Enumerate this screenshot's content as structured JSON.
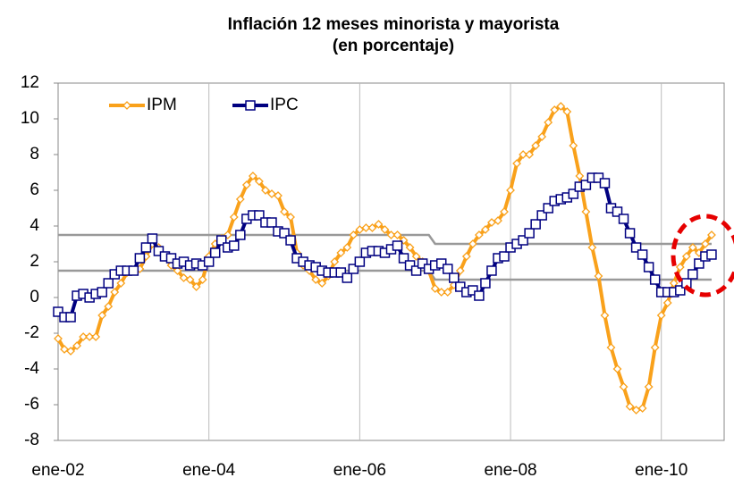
{
  "chart_data": {
    "type": "line",
    "title": "Inflación 12 meses minorista y mayorista (en porcentaje)",
    "categories": [
      "ene-02",
      null,
      null,
      null,
      null,
      null,
      null,
      null,
      null,
      null,
      null,
      null,
      null,
      null,
      null,
      null,
      null,
      null,
      null,
      null,
      null,
      null,
      null,
      null,
      "ene-04",
      null,
      null,
      null,
      null,
      null,
      null,
      null,
      null,
      null,
      null,
      null,
      null,
      null,
      null,
      null,
      null,
      null,
      null,
      null,
      null,
      null,
      null,
      null,
      "ene-06",
      null,
      null,
      null,
      null,
      null,
      null,
      null,
      null,
      null,
      null,
      null,
      null,
      null,
      null,
      null,
      null,
      null,
      null,
      null,
      null,
      null,
      null,
      null,
      "ene-08",
      null,
      null,
      null,
      null,
      null,
      null,
      null,
      null,
      null,
      null,
      null,
      null,
      null,
      null,
      null,
      null,
      null,
      null,
      null,
      null,
      null,
      null,
      null,
      "ene-10",
      null,
      null,
      null,
      null,
      null,
      null,
      null,
      null
    ],
    "series": [
      {
        "color": "#999999",
        "values": [
          3.5,
          3.5,
          3.5,
          3.5,
          3.5,
          3.5,
          3.5,
          3.5,
          3.5,
          3.5,
          3.5,
          3.5,
          3.5,
          3.5,
          3.5,
          3.5,
          3.5,
          3.5,
          3.5,
          3.5,
          3.5,
          3.5,
          3.5,
          3.5,
          3.5,
          3.5,
          3.5,
          3.5,
          3.5,
          3.5,
          3.5,
          3.5,
          3.5,
          3.5,
          3.5,
          3.5,
          3.5,
          3.5,
          3.5,
          3.5,
          3.5,
          3.5,
          3.5,
          3.5,
          3.5,
          3.5,
          3.5,
          3.5,
          3.5,
          3.5,
          3.5,
          3.5,
          3.5,
          3.5,
          3.5,
          3.5,
          3.5,
          3.5,
          3.5,
          3.5,
          3,
          3,
          3,
          3,
          3,
          3,
          3,
          3,
          3,
          3,
          3,
          3,
          3,
          3,
          3,
          3,
          3,
          3,
          3,
          3,
          3,
          3,
          3,
          3,
          3,
          3,
          3,
          3,
          3,
          3,
          3,
          3,
          3,
          3,
          3,
          3,
          3,
          3,
          3,
          3,
          3,
          3,
          3,
          3,
          3
        ]
      },
      {
        "color": "#999999",
        "values": [
          1.5,
          1.5,
          1.5,
          1.5,
          1.5,
          1.5,
          1.5,
          1.5,
          1.5,
          1.5,
          1.5,
          1.5,
          1.5,
          1.5,
          1.5,
          1.5,
          1.5,
          1.5,
          1.5,
          1.5,
          1.5,
          1.5,
          1.5,
          1.5,
          1.5,
          1.5,
          1.5,
          1.5,
          1.5,
          1.5,
          1.5,
          1.5,
          1.5,
          1.5,
          1.5,
          1.5,
          1.5,
          1.5,
          1.5,
          1.5,
          1.5,
          1.5,
          1.5,
          1.5,
          1.5,
          1.5,
          1.5,
          1.5,
          1.5,
          1.5,
          1.5,
          1.5,
          1.5,
          1.5,
          1.5,
          1.5,
          1.5,
          1.5,
          1.5,
          1.5,
          1,
          1,
          1,
          1,
          1,
          1,
          1,
          1,
          1,
          1,
          1,
          1,
          1,
          1,
          1,
          1,
          1,
          1,
          1,
          1,
          1,
          1,
          1,
          1,
          1,
          1,
          1,
          1,
          1,
          1,
          1,
          1,
          1,
          1,
          1,
          1,
          1,
          1,
          1,
          1,
          1,
          1,
          1,
          1,
          1
        ]
      },
      {
        "name": "IPM",
        "color": "#f9a11b",
        "marker": "diamond",
        "values": [
          -2.3,
          -2.9,
          -3.0,
          -2.7,
          -2.2,
          -2.2,
          -2.2,
          -1.0,
          -0.5,
          0.3,
          0.8,
          1.4,
          1.5,
          1.6,
          2.3,
          3.0,
          2.8,
          2.3,
          1.8,
          1.5,
          1.1,
          1.0,
          0.6,
          1.0,
          2.3,
          3.0,
          3.3,
          3.5,
          4.5,
          5.5,
          6.3,
          6.8,
          6.5,
          6.0,
          5.8,
          5.7,
          4.8,
          4.5,
          2.5,
          1.8,
          1.5,
          1.0,
          0.8,
          1.2,
          2.0,
          2.5,
          2.8,
          3.5,
          3.8,
          3.9,
          3.9,
          4.1,
          3.8,
          3.5,
          3.5,
          3.2,
          2.8,
          2.3,
          2.0,
          1.5,
          0.5,
          0.3,
          0.3,
          0.7,
          1.5,
          2.3,
          3.0,
          3.5,
          3.8,
          4.2,
          4.3,
          4.8,
          6.0,
          7.5,
          8.0,
          8.0,
          8.5,
          9.0,
          9.8,
          10.5,
          10.7,
          10.4,
          8.5,
          6.8,
          4.8,
          2.8,
          1.2,
          -1.0,
          -2.8,
          -4.0,
          -5.0,
          -6.1,
          -6.3,
          -6.2,
          -5.0,
          -2.8,
          -1.0,
          -0.3,
          0.8,
          1.7,
          2.3,
          2.8,
          2.5,
          3.0,
          3.5
        ]
      },
      {
        "name": "IPC",
        "color": "#000080",
        "marker": "square",
        "values": [
          -0.8,
          -1.1,
          -1.1,
          0.1,
          0.2,
          0.0,
          0.2,
          0.3,
          0.8,
          1.3,
          1.5,
          1.5,
          1.5,
          2.2,
          2.8,
          3.3,
          2.6,
          2.3,
          2.2,
          1.9,
          2.0,
          1.8,
          1.9,
          1.8,
          2.0,
          2.5,
          3.2,
          2.8,
          2.9,
          3.5,
          4.4,
          4.6,
          4.6,
          4.2,
          4.2,
          3.7,
          3.6,
          3.2,
          2.2,
          2.0,
          1.8,
          1.7,
          1.5,
          1.4,
          1.4,
          1.4,
          1.1,
          1.6,
          2.0,
          2.5,
          2.6,
          2.6,
          2.5,
          2.7,
          2.9,
          2.2,
          1.8,
          1.5,
          1.9,
          1.6,
          1.8,
          1.9,
          1.6,
          1.1,
          0.6,
          0.3,
          0.4,
          0.1,
          0.8,
          1.5,
          2.2,
          2.3,
          2.8,
          3.0,
          3.2,
          3.6,
          4.1,
          4.6,
          5.0,
          5.4,
          5.5,
          5.6,
          5.8,
          6.2,
          6.3,
          6.7,
          6.7,
          6.4,
          5.0,
          4.8,
          4.4,
          3.6,
          2.8,
          2.4,
          1.7,
          1.0,
          0.3,
          0.3,
          0.3,
          0.4,
          0.8,
          1.3,
          1.9,
          2.3,
          2.4
        ]
      }
    ],
    "ylim": [
      -8,
      12
    ],
    "yticks": [
      -8,
      -6,
      -4,
      -2,
      0,
      2,
      4,
      6,
      8,
      10,
      12
    ],
    "legend": "top-left"
  }
}
